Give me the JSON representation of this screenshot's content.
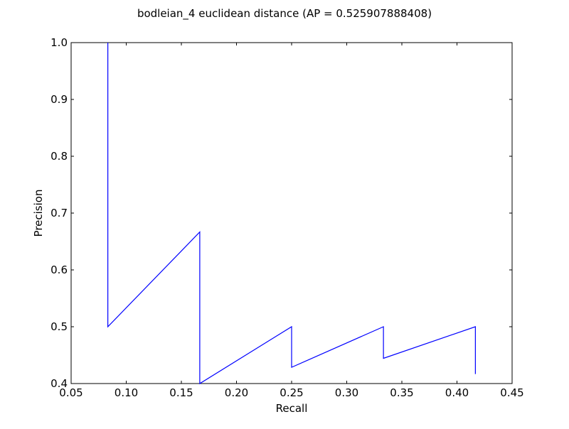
{
  "chart_data": {
    "type": "line",
    "title": "bodleian_4 euclidean distance  (AP = 0.525907888408)",
    "xlabel": "Recall",
    "ylabel": "Precision",
    "xlim": [
      0.05,
      0.45
    ],
    "ylim": [
      0.4,
      1.0
    ],
    "x_ticks": [
      0.05,
      0.1,
      0.15,
      0.2,
      0.25,
      0.3,
      0.35,
      0.4,
      0.45
    ],
    "x_tick_labels": [
      "0.05",
      "0.10",
      "0.15",
      "0.20",
      "0.25",
      "0.30",
      "0.35",
      "0.40",
      "0.45"
    ],
    "y_ticks": [
      0.4,
      0.5,
      0.6,
      0.7,
      0.8,
      0.9,
      1.0
    ],
    "y_tick_labels": [
      "0.4",
      "0.5",
      "0.6",
      "0.7",
      "0.8",
      "0.9",
      "1.0"
    ],
    "grid": false,
    "legend": "none",
    "series": [
      {
        "color": "#0000ff",
        "x": [
          0.0833,
          0.0833,
          0.1667,
          0.1667,
          0.25,
          0.25,
          0.3333,
          0.3333,
          0.4167,
          0.4167
        ],
        "y": [
          1.0,
          0.5,
          0.6667,
          0.4,
          0.5,
          0.4286,
          0.5,
          0.4444,
          0.5,
          0.4167
        ]
      }
    ]
  }
}
